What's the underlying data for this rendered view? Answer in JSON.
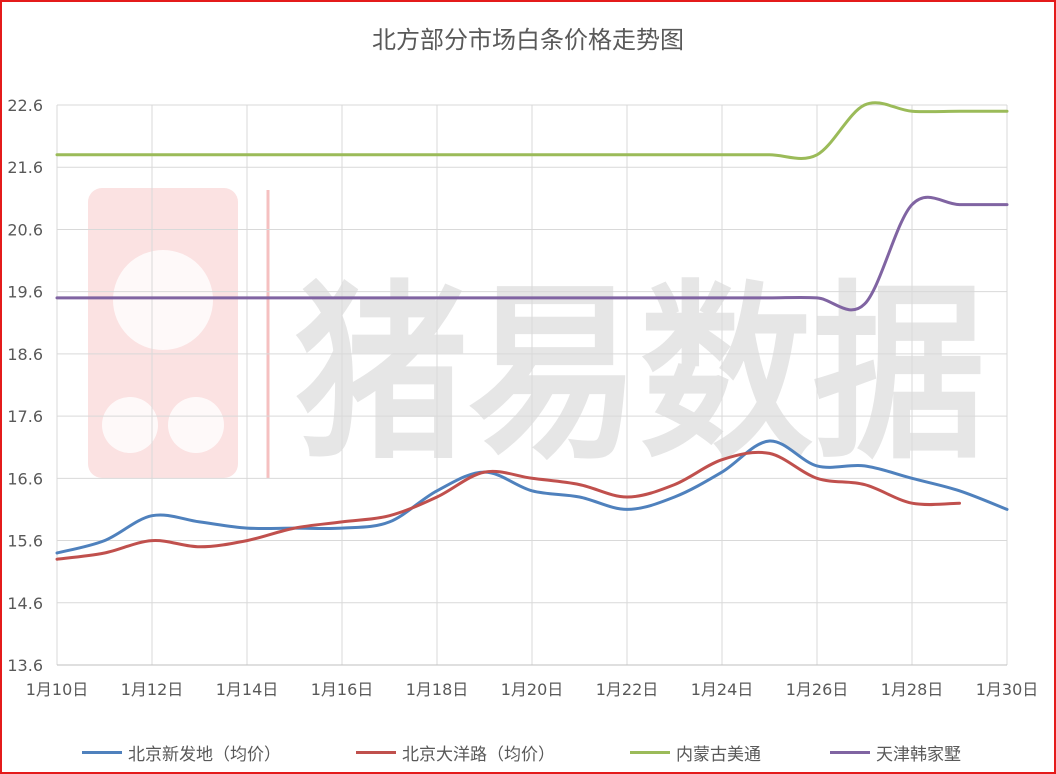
{
  "chart_data": {
    "type": "line",
    "title": "北方部分市场白条价格走势图",
    "xlabel": "",
    "ylabel": "",
    "watermark": "猪易数据",
    "ylim": [
      13.6,
      22.6
    ],
    "yticks": [
      "13.6",
      "14.6",
      "15.6",
      "16.6",
      "17.6",
      "18.6",
      "19.6",
      "20.6",
      "21.6",
      "22.6"
    ],
    "xticks": [
      "1月10日",
      "1月12日",
      "1月14日",
      "1月16日",
      "1月18日",
      "1月20日",
      "1月22日",
      "1月24日",
      "1月26日",
      "1月28日",
      "1月30日"
    ],
    "x": [
      10,
      11,
      12,
      13,
      14,
      15,
      16,
      17,
      18,
      19,
      20,
      21,
      22,
      23,
      24,
      25,
      26,
      27,
      28,
      29,
      30
    ],
    "grid": true,
    "legend_position": "bottom",
    "series": [
      {
        "name": "北京新发地（均价）",
        "color": "#4f81bd",
        "values": [
          15.4,
          15.6,
          16.0,
          15.9,
          15.8,
          15.8,
          15.8,
          15.9,
          16.4,
          16.7,
          16.4,
          16.3,
          16.1,
          16.3,
          16.7,
          17.2,
          16.8,
          16.8,
          16.6,
          16.4,
          16.1
        ]
      },
      {
        "name": "北京大洋路（均价）",
        "color": "#c0504d",
        "values": [
          15.3,
          15.4,
          15.6,
          15.5,
          15.6,
          15.8,
          15.9,
          16.0,
          16.3,
          16.7,
          16.6,
          16.5,
          16.3,
          16.5,
          16.9,
          17.0,
          16.6,
          16.5,
          16.2,
          16.2,
          null
        ]
      },
      {
        "name": "内蒙古美通",
        "color": "#9bbb59",
        "values": [
          21.8,
          21.8,
          21.8,
          21.8,
          21.8,
          21.8,
          21.8,
          21.8,
          21.8,
          21.8,
          21.8,
          21.8,
          21.8,
          21.8,
          21.8,
          21.8,
          21.8,
          22.6,
          22.5,
          22.5,
          22.5
        ]
      },
      {
        "name": "天津韩家墅",
        "color": "#8064a2",
        "values": [
          19.5,
          19.5,
          19.5,
          19.5,
          19.5,
          19.5,
          19.5,
          19.5,
          19.5,
          19.5,
          19.5,
          19.5,
          19.5,
          19.5,
          19.5,
          19.5,
          19.5,
          19.4,
          21.0,
          21.0,
          21.0
        ]
      }
    ]
  }
}
